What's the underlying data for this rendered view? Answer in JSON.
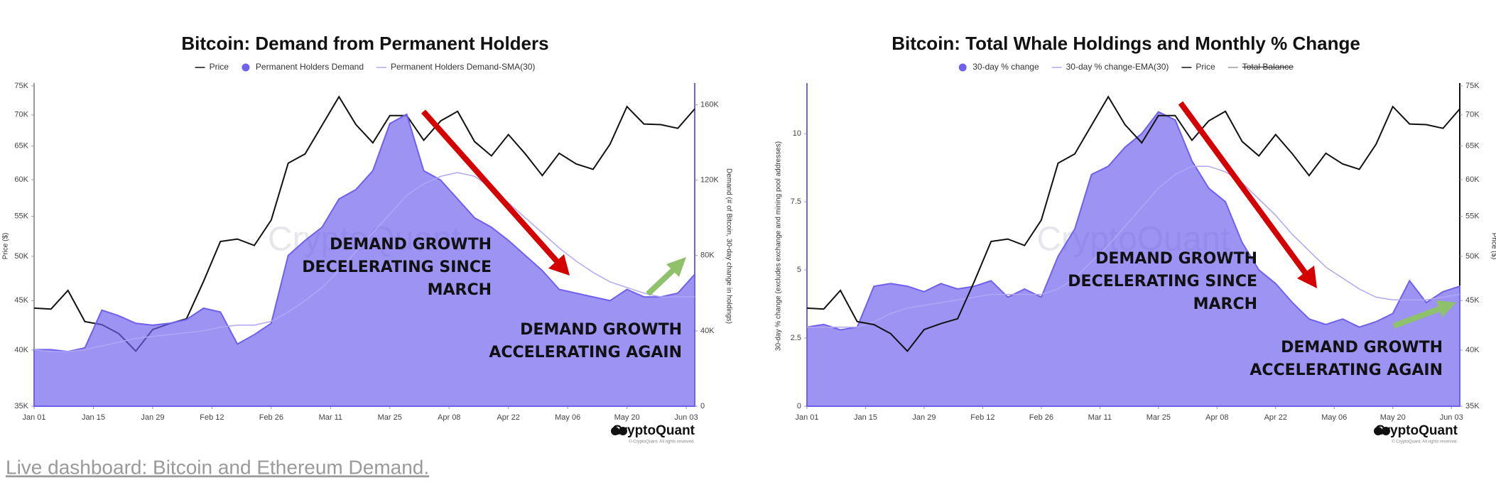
{
  "chart_data": [
    {
      "type": "line",
      "title": "Bitcoin: Demand from Permanent Holders",
      "x": [
        0,
        4,
        8,
        12,
        16,
        20,
        24,
        28,
        32,
        36,
        40,
        44,
        48,
        52,
        56,
        60,
        64,
        68,
        72,
        76,
        80,
        84,
        88,
        92,
        96,
        100,
        104,
        108,
        112,
        116,
        120,
        124,
        128,
        132,
        136,
        140,
        144,
        148,
        152,
        156
      ],
      "xlim": [
        0,
        156
      ],
      "xticks": [
        {
          "value": 0,
          "label": "Jan 01"
        },
        {
          "value": 14,
          "label": "Jan 15"
        },
        {
          "value": 28,
          "label": "Jan 29"
        },
        {
          "value": 42,
          "label": "Feb 12"
        },
        {
          "value": 56,
          "label": "Feb 26"
        },
        {
          "value": 70,
          "label": "Mar 11"
        },
        {
          "value": 84,
          "label": "Mar 25"
        },
        {
          "value": 98,
          "label": "Apr 08"
        },
        {
          "value": 112,
          "label": "Apr 22"
        },
        {
          "value": 126,
          "label": "May 06"
        },
        {
          "value": 140,
          "label": "May 20"
        },
        {
          "value": 154,
          "label": "Jun 03"
        }
      ],
      "ylabel": "Price ($)",
      "ylog": true,
      "ylim": [
        35000,
        75000
      ],
      "yticks": [
        {
          "value": 35000,
          "label": "35K"
        },
        {
          "value": 40000,
          "label": "40K"
        },
        {
          "value": 45000,
          "label": "45K"
        },
        {
          "value": 50000,
          "label": "50K"
        },
        {
          "value": 55000,
          "label": "55K"
        },
        {
          "value": 60000,
          "label": "60K"
        },
        {
          "value": 65000,
          "label": "65K"
        },
        {
          "value": 70000,
          "label": "70K"
        },
        {
          "value": 75000,
          "label": "75K"
        }
      ],
      "y2label": "Demand (# of Bitcoin, 30-day change in holdings)",
      "y2lim": [
        0,
        170000
      ],
      "y2ticks": [
        0,
        {
          "value": 40000,
          "label": "40K"
        },
        {
          "value": 80000,
          "label": "80K"
        },
        {
          "value": 120000,
          "label": "120K"
        },
        {
          "value": 160000,
          "label": "160K"
        }
      ],
      "series": [
        {
          "name": "Price",
          "color": "#111111",
          "style": "line",
          "values": [
            44200,
            44100,
            46100,
            42800,
            42500,
            41600,
            39900,
            42000,
            42600,
            43100,
            47100,
            51800,
            52100,
            51300,
            54500,
            62400,
            63800,
            68300,
            73100,
            68400,
            65500,
            69900,
            69900,
            65900,
            69000,
            70600,
            65700,
            63500,
            66800,
            63800,
            60600,
            63900,
            62300,
            61500,
            65300,
            71400,
            68500,
            68400,
            67800,
            71000
          ]
        },
        {
          "name": "Permanent Holders Demand",
          "color": "#6f60ee",
          "style": "area",
          "axis": "y2",
          "values": [
            30000,
            30000,
            29000,
            31000,
            51000,
            48000,
            44000,
            43000,
            44000,
            46000,
            52000,
            50000,
            33000,
            38000,
            44000,
            80000,
            88000,
            95000,
            110000,
            115000,
            125000,
            150000,
            155000,
            125000,
            120000,
            110000,
            100000,
            95000,
            88000,
            80000,
            72000,
            62000,
            60000,
            58000,
            56000,
            62000,
            58000,
            58000,
            60000,
            70000
          ]
        },
        {
          "name": "Permanent Holders Demand-SMA(30)",
          "color": "#b0a7f6",
          "style": "line",
          "axis": "y2",
          "values": [
            30000,
            29000,
            29000,
            30000,
            32000,
            34000,
            36000,
            37000,
            38000,
            39000,
            40000,
            42000,
            43000,
            43000,
            45000,
            50000,
            56000,
            63000,
            72000,
            82000,
            92000,
            102000,
            112000,
            118000,
            122000,
            124000,
            122000,
            116000,
            108000,
            100000,
            92000,
            84000,
            77000,
            71000,
            66000,
            63000,
            60000,
            58000,
            58000,
            58000
          ]
        }
      ],
      "annotations": [
        [
          "DEMAND GROWTH",
          "DECELERATING SINCE",
          "MARCH"
        ],
        [
          "DEMAND GROWTH",
          "ACCELERATING AGAIN"
        ]
      ],
      "watermark": "CryptoQuant",
      "brand": "CryptoQuant",
      "copyright": "© CryptoQuant. All rights reserved."
    },
    {
      "type": "line",
      "title": "Bitcoin: Total Whale Holdings and Monthly % Change",
      "x": [
        0,
        4,
        8,
        12,
        16,
        20,
        24,
        28,
        32,
        36,
        40,
        44,
        48,
        52,
        56,
        60,
        64,
        68,
        72,
        76,
        80,
        84,
        88,
        92,
        96,
        100,
        104,
        108,
        112,
        116,
        120,
        124,
        128,
        132,
        136,
        140,
        144,
        148,
        152,
        156
      ],
      "xlim": [
        0,
        156
      ],
      "xticks": [
        {
          "value": 0,
          "label": "Jan 01"
        },
        {
          "value": 14,
          "label": "Jan 15"
        },
        {
          "value": 28,
          "label": "Jan 29"
        },
        {
          "value": 42,
          "label": "Feb 12"
        },
        {
          "value": 56,
          "label": "Feb 26"
        },
        {
          "value": 70,
          "label": "Mar 11"
        },
        {
          "value": 84,
          "label": "Mar 25"
        },
        {
          "value": 98,
          "label": "Apr 08"
        },
        {
          "value": 112,
          "label": "Apr 22"
        },
        {
          "value": 126,
          "label": "May 06"
        },
        {
          "value": 140,
          "label": "May 20"
        },
        {
          "value": 154,
          "label": "Jun 03"
        }
      ],
      "ylabel": "30-day % change (excludes exchange and mining pool addresses)",
      "ylim": [
        0,
        11.75
      ],
      "yticks": [
        0,
        2.5,
        5,
        7.5,
        10
      ],
      "y2label": "Price ($)",
      "y2log": true,
      "y2lim": [
        35000,
        75000
      ],
      "y2ticks": [
        {
          "value": 35000,
          "label": "35K"
        },
        {
          "value": 40000,
          "label": "40K"
        },
        {
          "value": 45000,
          "label": "45K"
        },
        {
          "value": 50000,
          "label": "50K"
        },
        {
          "value": 55000,
          "label": "55K"
        },
        {
          "value": 60000,
          "label": "60K"
        },
        {
          "value": 65000,
          "label": "65K"
        },
        {
          "value": 70000,
          "label": "70K"
        },
        {
          "value": 75000,
          "label": "75K"
        }
      ],
      "series": [
        {
          "name": "30-day % change",
          "color": "#6f60ee",
          "style": "area",
          "values": [
            2.9,
            3.0,
            2.8,
            2.9,
            4.4,
            4.5,
            4.4,
            4.2,
            4.5,
            4.3,
            4.4,
            4.6,
            4.0,
            4.3,
            4.0,
            5.5,
            6.5,
            8.5,
            8.8,
            9.5,
            10.0,
            10.8,
            10.5,
            9.0,
            8.0,
            7.5,
            6.0,
            5.0,
            4.5,
            3.8,
            3.2,
            3.0,
            3.2,
            2.9,
            3.1,
            3.4,
            4.6,
            3.8,
            4.2,
            4.4
          ]
        },
        {
          "name": "30-day % change-EMA(30)",
          "color": "#b0a7f6",
          "style": "line",
          "values": [
            2.9,
            2.9,
            2.9,
            2.9,
            3.1,
            3.4,
            3.6,
            3.7,
            3.8,
            3.9,
            4.0,
            4.1,
            4.1,
            4.1,
            4.1,
            4.3,
            4.7,
            5.3,
            5.9,
            6.6,
            7.3,
            8.0,
            8.5,
            8.8,
            8.8,
            8.6,
            8.2,
            7.6,
            7.0,
            6.3,
            5.7,
            5.1,
            4.7,
            4.3,
            4.0,
            3.9,
            3.9,
            3.9,
            4.0,
            4.1
          ]
        },
        {
          "name": "Price",
          "color": "#111111",
          "style": "line",
          "axis": "y2",
          "values": [
            44200,
            44100,
            46100,
            42800,
            42500,
            41600,
            39900,
            42000,
            42600,
            43100,
            47100,
            51800,
            52100,
            51300,
            54500,
            62400,
            63800,
            68300,
            73100,
            68400,
            65500,
            69900,
            69900,
            65900,
            69000,
            70600,
            65700,
            63500,
            66800,
            63800,
            60600,
            63900,
            62300,
            61500,
            65300,
            71400,
            68500,
            68400,
            67800,
            71000
          ]
        },
        {
          "name": "Total Balance",
          "color": "#111111",
          "style": "line",
          "hidden": true
        }
      ],
      "annotations": [
        [
          "DEMAND GROWTH",
          "DECELERATING SINCE",
          "MARCH"
        ],
        [
          "DEMAND GROWTH",
          "ACCELERATING AGAIN"
        ]
      ],
      "watermark": "CryptoQuant",
      "brand": "CryptoQuant",
      "copyright": "© CryptoQuant. All rights reserved."
    }
  ],
  "footer": "Live dashboard: Bitcoin and Ethereum Demand."
}
